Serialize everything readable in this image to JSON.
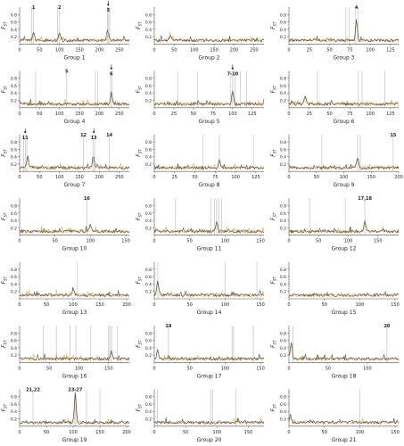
{
  "figure": {
    "y_axis_label": "F",
    "y_axis_subscript": "ST",
    "y_ticks": [
      "0.2",
      "0.4",
      "0.6",
      "0.8"
    ],
    "colors": {
      "line_black": "#2b2b2b",
      "line_orange": "#e59a2f",
      "highlight": "#c9c9c9",
      "axis": "#555555",
      "text": "#222222"
    }
  },
  "chart_data": [
    {
      "type": "line",
      "title": "Group 1",
      "xlim": [
        0,
        275
      ],
      "xticks": [
        0,
        50,
        100,
        150,
        200,
        250
      ],
      "ylim": [
        0,
        1
      ],
      "highlight_x": [
        30,
        35,
        95,
        100,
        220,
        223,
        226
      ],
      "peaks": [
        {
          "x": 35,
          "y": 0.35
        },
        {
          "x": 100,
          "y": 0.3
        },
        {
          "x": 222,
          "y": 0.32
        }
      ],
      "annotations": [
        {
          "label": "1",
          "x": 35
        },
        {
          "label": "2",
          "x": 100
        },
        {
          "label": "3",
          "x": 222,
          "arrow": true
        }
      ]
    },
    {
      "type": "line",
      "title": "Group 2",
      "xlim": [
        0,
        275
      ],
      "xticks": [
        0,
        50,
        100,
        150,
        200,
        250
      ],
      "ylim": [
        0,
        1
      ],
      "highlight_x": [],
      "peaks": [
        {
          "x": 40,
          "y": 0.25
        }
      ],
      "annotations": []
    },
    {
      "type": "line",
      "title": "Group 3",
      "xlim": [
        0,
        135
      ],
      "xticks": [
        0,
        25,
        50,
        75,
        100,
        125
      ],
      "ylim": [
        0,
        1
      ],
      "highlight_x": [
        70,
        74,
        82,
        85
      ],
      "peaks": [
        {
          "x": 83,
          "y": 0.65
        }
      ],
      "annotations": [
        {
          "label": "4",
          "x": 83
        }
      ]
    },
    {
      "type": "line",
      "title": "Group 4",
      "xlim": [
        0,
        275
      ],
      "xticks": [
        0,
        50,
        100,
        150,
        200,
        250
      ],
      "ylim": [
        0,
        1
      ],
      "highlight_x": [
        40,
        118,
        190,
        196,
        228,
        232
      ],
      "peaks": [
        {
          "x": 230,
          "y": 0.35
        }
      ],
      "annotations": [
        {
          "label": "5",
          "x": 118
        },
        {
          "label": "6",
          "x": 230,
          "arrow": true
        }
      ]
    },
    {
      "type": "line",
      "title": "Group 5",
      "xlim": [
        0,
        140
      ],
      "xticks": [
        0,
        25,
        50,
        75,
        100,
        125
      ],
      "ylim": [
        0,
        1
      ],
      "highlight_x": [
        30,
        55,
        97,
        100,
        103,
        110,
        118
      ],
      "peaks": [
        {
          "x": 100,
          "y": 0.45
        }
      ],
      "annotations": [
        {
          "label": "7-10",
          "x": 100,
          "arrow": true
        }
      ]
    },
    {
      "type": "line",
      "title": "Group 6",
      "xlim": [
        0,
        135
      ],
      "xticks": [
        0,
        25,
        50,
        75,
        100,
        125
      ],
      "ylim": [
        0,
        1
      ],
      "highlight_x": [
        35,
        85,
        90,
        118
      ],
      "peaks": [
        {
          "x": 20,
          "y": 0.3
        }
      ],
      "annotations": []
    },
    {
      "type": "line",
      "title": "Group 7",
      "xlim": [
        0,
        275
      ],
      "xticks": [
        0,
        50,
        100,
        150,
        200,
        250
      ],
      "ylim": [
        0,
        1
      ],
      "highlight_x": [
        10,
        14,
        18,
        160,
        184,
        188,
        225
      ],
      "peaks": [
        {
          "x": 20,
          "y": 0.4
        },
        {
          "x": 185,
          "y": 0.4
        }
      ],
      "annotations": [
        {
          "label": "11",
          "x": 14,
          "arrow": true
        },
        {
          "label": "12",
          "x": 160
        },
        {
          "label": "13",
          "x": 186,
          "arrow": true
        },
        {
          "label": "14",
          "x": 225
        }
      ]
    },
    {
      "type": "line",
      "title": "Group 8",
      "xlim": [
        0,
        135
      ],
      "xticks": [
        0,
        25,
        50,
        75,
        100,
        125
      ],
      "ylim": [
        0,
        1
      ],
      "highlight_x": [
        60,
        80,
        122
      ],
      "peaks": [
        {
          "x": 80,
          "y": 0.3
        }
      ],
      "annotations": []
    },
    {
      "type": "line",
      "title": "Group 9",
      "xlim": [
        0,
        200
      ],
      "xticks": [
        0,
        50,
        100,
        150,
        200
      ],
      "ylim": [
        0,
        1
      ],
      "highlight_x": [
        60,
        125,
        130,
        190
      ],
      "peaks": [
        {
          "x": 125,
          "y": 0.4
        }
      ],
      "annotations": [
        {
          "label": "15",
          "x": 190
        }
      ]
    },
    {
      "type": "line",
      "title": "Group 10",
      "xlim": [
        0,
        155
      ],
      "xticks": [
        0,
        50,
        100,
        150
      ],
      "ylim": [
        0,
        1
      ],
      "highlight_x": [
        95
      ],
      "peaks": [
        {
          "x": 100,
          "y": 0.3
        }
      ],
      "annotations": [
        {
          "label": "16",
          "x": 95
        }
      ]
    },
    {
      "type": "line",
      "title": "Group 11",
      "xlim": [
        0,
        155
      ],
      "xticks": [
        0,
        50,
        100,
        150
      ],
      "ylim": [
        0,
        1
      ],
      "highlight_x": [
        30,
        80,
        85,
        88,
        91,
        95
      ],
      "peaks": [
        {
          "x": 88,
          "y": 0.35
        }
      ],
      "annotations": []
    },
    {
      "type": "line",
      "title": "Group 12",
      "xlim": [
        0,
        185
      ],
      "xticks": [
        0,
        50,
        100,
        150
      ],
      "ylim": [
        0,
        1
      ],
      "highlight_x": [
        35,
        95,
        128
      ],
      "peaks": [
        {
          "x": 128,
          "y": 0.4
        }
      ],
      "annotations": [
        {
          "label": "17,18",
          "x": 128
        }
      ]
    },
    {
      "type": "line",
      "title": "Group 13",
      "xlim": [
        0,
        205
      ],
      "xticks": [
        0,
        50,
        100,
        150,
        200
      ],
      "ylim": [
        0,
        1
      ],
      "highlight_x": [
        108
      ],
      "peaks": [
        {
          "x": 100,
          "y": 0.28
        }
      ],
      "annotations": []
    },
    {
      "type": "line",
      "title": "Group 14",
      "xlim": [
        0,
        155
      ],
      "xticks": [
        0,
        50,
        100,
        150
      ],
      "ylim": [
        0,
        1
      ],
      "highlight_x": [
        5,
        100,
        145
      ],
      "peaks": [
        {
          "x": 5,
          "y": 0.5
        }
      ],
      "annotations": []
    },
    {
      "type": "line",
      "title": "Group 15",
      "xlim": [
        0,
        155
      ],
      "xticks": [
        0,
        50,
        100,
        150
      ],
      "ylim": [
        0,
        1
      ],
      "highlight_x": [],
      "peaks": [],
      "annotations": []
    },
    {
      "type": "line",
      "title": "Group 16",
      "xlim": [
        0,
        185
      ],
      "xticks": [
        0,
        50,
        100,
        150
      ],
      "ylim": [
        0,
        1
      ],
      "highlight_x": [
        40,
        62,
        85,
        95,
        120,
        150,
        152,
        155,
        165
      ],
      "peaks": [
        {
          "x": 155,
          "y": 0.3
        }
      ],
      "annotations": []
    },
    {
      "type": "line",
      "title": "Group 17",
      "xlim": [
        0,
        155
      ],
      "xticks": [
        0,
        50,
        100,
        150
      ],
      "ylim": [
        0,
        1
      ],
      "highlight_x": [
        20,
        110,
        112,
        140
      ],
      "peaks": [
        {
          "x": 5,
          "y": 0.35
        }
      ],
      "annotations": [
        {
          "label": "19",
          "x": 20
        }
      ]
    },
    {
      "type": "line",
      "title": "Group 18",
      "xlim": [
        0,
        140
      ],
      "xticks": [
        0,
        50,
        100
      ],
      "ylim": [
        0,
        1
      ],
      "highlight_x": [
        5,
        125
      ],
      "peaks": [
        {
          "x": 3,
          "y": 0.55
        }
      ],
      "annotations": [
        {
          "label": "20",
          "x": 125
        }
      ]
    },
    {
      "type": "line",
      "title": "Group 19",
      "xlim": [
        0,
        205
      ],
      "xticks": [
        0,
        50,
        100,
        150,
        200
      ],
      "ylim": [
        0,
        1
      ],
      "highlight_x": [
        25,
        103,
        105,
        125,
        150
      ],
      "peaks": [
        {
          "x": 104,
          "y": 0.9
        }
      ],
      "annotations": [
        {
          "label": "21,22",
          "x": 25
        },
        {
          "label": "23-27",
          "x": 104
        }
      ]
    },
    {
      "type": "line",
      "title": "Group 20",
      "xlim": [
        0,
        175
      ],
      "xticks": [
        0,
        50,
        100,
        150
      ],
      "ylim": [
        0,
        1
      ],
      "highlight_x": [
        5,
        90,
        93,
        130
      ],
      "peaks": [],
      "annotations": []
    },
    {
      "type": "line",
      "title": "Group 21",
      "xlim": [
        0,
        155
      ],
      "xticks": [
        0,
        50,
        100,
        150
      ],
      "ylim": [
        0,
        1
      ],
      "highlight_x": [
        100
      ],
      "peaks": [
        {
          "x": 2,
          "y": 0.3
        }
      ],
      "annotations": []
    }
  ]
}
